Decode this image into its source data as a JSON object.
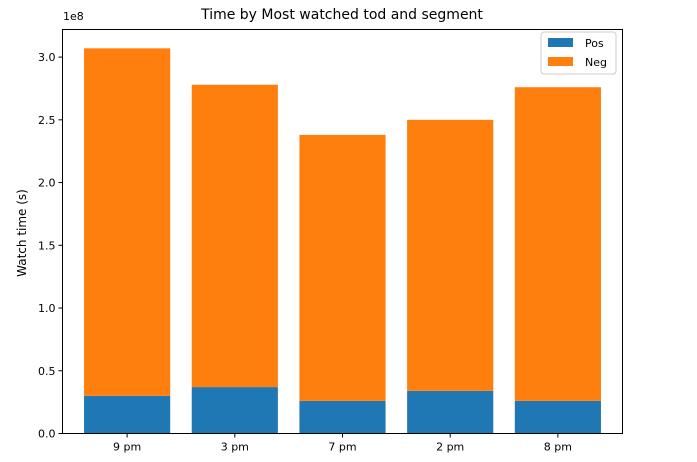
{
  "chart_data": {
    "type": "bar",
    "stacked": true,
    "title": "Time by Most watched tod and segment",
    "xlabel": "",
    "ylabel": "Watch time (s)",
    "y_offset_label": "1e8",
    "ylim": [
      0,
      3.22
    ],
    "categories": [
      "9 pm",
      "3 pm",
      "7 pm",
      "2 pm",
      "8 pm"
    ],
    "y_ticks": [
      0.0,
      0.5,
      1.0,
      1.5,
      2.0,
      2.5,
      3.0
    ],
    "y_tick_labels": [
      "0.0",
      "0.5",
      "1.0",
      "1.5",
      "2.0",
      "2.5",
      "3.0"
    ],
    "series": [
      {
        "name": "Pos",
        "color": "#1f77b4",
        "values": [
          0.3,
          0.37,
          0.26,
          0.34,
          0.26
        ]
      },
      {
        "name": "Neg",
        "color": "#ff7f0e",
        "values": [
          2.77,
          2.41,
          2.12,
          2.16,
          2.5
        ]
      }
    ],
    "legend": "top-right",
    "grid": false
  }
}
